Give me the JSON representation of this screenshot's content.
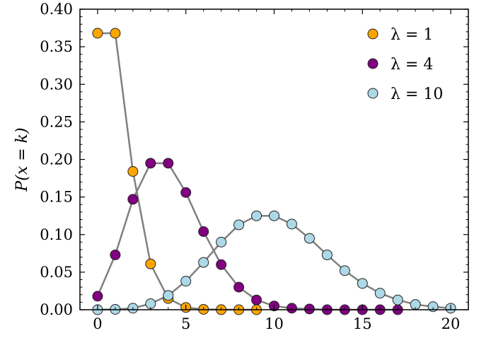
{
  "chart_data": {
    "type": "line",
    "title": "",
    "xlabel": "",
    "ylabel": "P(x = k)",
    "xlim": [
      -1,
      21
    ],
    "ylim": [
      0,
      0.4
    ],
    "x_ticks": [
      0,
      5,
      10,
      15,
      20
    ],
    "y_ticks": [
      0.0,
      0.05,
      0.1,
      0.15,
      0.2,
      0.25,
      0.3,
      0.35,
      0.4
    ],
    "x_tick_labels": [
      "0",
      "5",
      "10",
      "15",
      "20"
    ],
    "y_tick_labels": [
      "0.00",
      "0.05",
      "0.10",
      "0.15",
      "0.20",
      "0.25",
      "0.30",
      "0.35",
      "0.40"
    ],
    "legend_position": "top-right",
    "grid": false,
    "line_color": "#808080",
    "series": [
      {
        "name": "λ = 1",
        "color": "#ffa500",
        "x": [
          0,
          1,
          2,
          3,
          4,
          5,
          6,
          7,
          8,
          9
        ],
        "values": [
          0.368,
          0.368,
          0.184,
          0.061,
          0.015,
          0.003,
          0.0005,
          0.0001,
          0.0,
          0.0
        ]
      },
      {
        "name": "λ = 4",
        "color": "#800080",
        "x": [
          0,
          1,
          2,
          3,
          4,
          5,
          6,
          7,
          8,
          9,
          10,
          11,
          12,
          13,
          14,
          15,
          16,
          17
        ],
        "values": [
          0.018,
          0.073,
          0.147,
          0.195,
          0.195,
          0.156,
          0.104,
          0.06,
          0.03,
          0.013,
          0.005,
          0.002,
          0.001,
          0.0,
          0.0,
          0.0,
          0.0,
          0.0
        ]
      },
      {
        "name": "λ = 10",
        "color": "#add8e6",
        "x": [
          0,
          1,
          2,
          3,
          4,
          5,
          6,
          7,
          8,
          9,
          10,
          11,
          12,
          13,
          14,
          15,
          16,
          17,
          18,
          19,
          20
        ],
        "values": [
          0.0,
          0.0005,
          0.002,
          0.008,
          0.019,
          0.038,
          0.063,
          0.09,
          0.113,
          0.125,
          0.125,
          0.114,
          0.095,
          0.073,
          0.052,
          0.035,
          0.022,
          0.013,
          0.007,
          0.004,
          0.002
        ]
      }
    ]
  }
}
